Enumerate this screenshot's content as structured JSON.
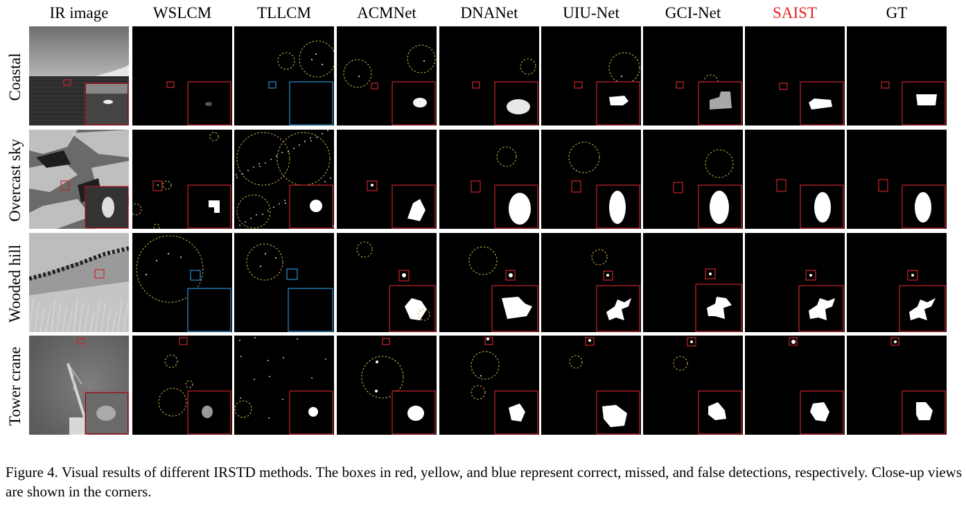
{
  "columns": [
    "IR image",
    "WSLCM",
    "TLLCM",
    "ACMNet",
    "DNANet",
    "UIU-Net",
    "GCI-Net",
    "SAIST",
    "GT"
  ],
  "highlight_column": "SAIST",
  "highlight_color": "#e8211f",
  "rows": [
    "Coastal",
    "Overcast sky",
    "Wooded hill",
    "Tower crane"
  ],
  "box_colors": {
    "correct": "#c8262b",
    "missed": "#c8b04a",
    "false": "#2b8fd0"
  },
  "caption": {
    "label": "Figure 4.",
    "text": "Visual results of different IRSTD methods. The boxes in red, yellow, and blue represent correct, missed, and false detections, respectively. Close-up views are shown in the corners."
  }
}
